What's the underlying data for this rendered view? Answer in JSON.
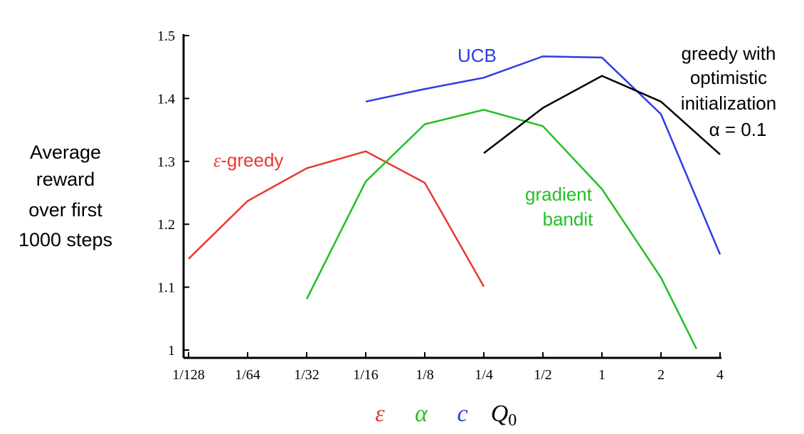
{
  "chart_data": {
    "type": "line",
    "title": "",
    "ylabel_lines": [
      "Average",
      "reward",
      "over first",
      "1000 steps"
    ],
    "x_categories": [
      "1/128",
      "1/64",
      "1/32",
      "1/16",
      "1/8",
      "1/4",
      "1/2",
      "1",
      "2",
      "4"
    ],
    "ylim": [
      1.0,
      1.5
    ],
    "yticks": [
      1,
      1.1,
      1.2,
      1.3,
      1.4,
      1.5
    ],
    "ytick_labels": [
      "1",
      "1.1",
      "1.2",
      "1.3",
      "1.4",
      "1.5"
    ],
    "series": [
      {
        "id": "epsilon-greedy",
        "name": "-greedy",
        "name_prefix": "ε",
        "color": "#e8382e",
        "x": [
          0,
          1,
          2,
          3,
          4,
          5
        ],
        "values": [
          1.145,
          1.237,
          1.289,
          1.316,
          1.266,
          1.101
        ]
      },
      {
        "id": "gradient-bandit",
        "name_lines": [
          "gradient",
          "bandit"
        ],
        "color": "#22c022",
        "x": [
          2,
          3,
          4,
          5,
          6,
          7,
          8,
          8.6
        ],
        "values": [
          1.081,
          1.268,
          1.359,
          1.382,
          1.356,
          1.256,
          1.115,
          1.002
        ]
      },
      {
        "id": "ucb",
        "name": "UCB",
        "color": "#2b3ce6",
        "x": [
          3,
          4,
          5,
          6,
          7,
          8,
          9
        ],
        "values": [
          1.395,
          1.415,
          1.433,
          1.467,
          1.465,
          1.375,
          1.152
        ]
      },
      {
        "id": "greedy-optimistic",
        "name_lines": [
          "greedy with",
          "optimistic",
          "initialization",
          "α = 0.1"
        ],
        "color": "#000000",
        "x": [
          5,
          6,
          7,
          8,
          9
        ],
        "values": [
          1.313,
          1.385,
          1.436,
          1.395,
          1.311
        ]
      }
    ],
    "parameter_legend": [
      {
        "symbol": "ε",
        "color": "#e8382e"
      },
      {
        "symbol": "α",
        "color": "#22c022"
      },
      {
        "symbol": "c",
        "color": "#2b3ce6"
      },
      {
        "symbol": "Q",
        "subscript": "0",
        "color": "#000000"
      }
    ]
  }
}
